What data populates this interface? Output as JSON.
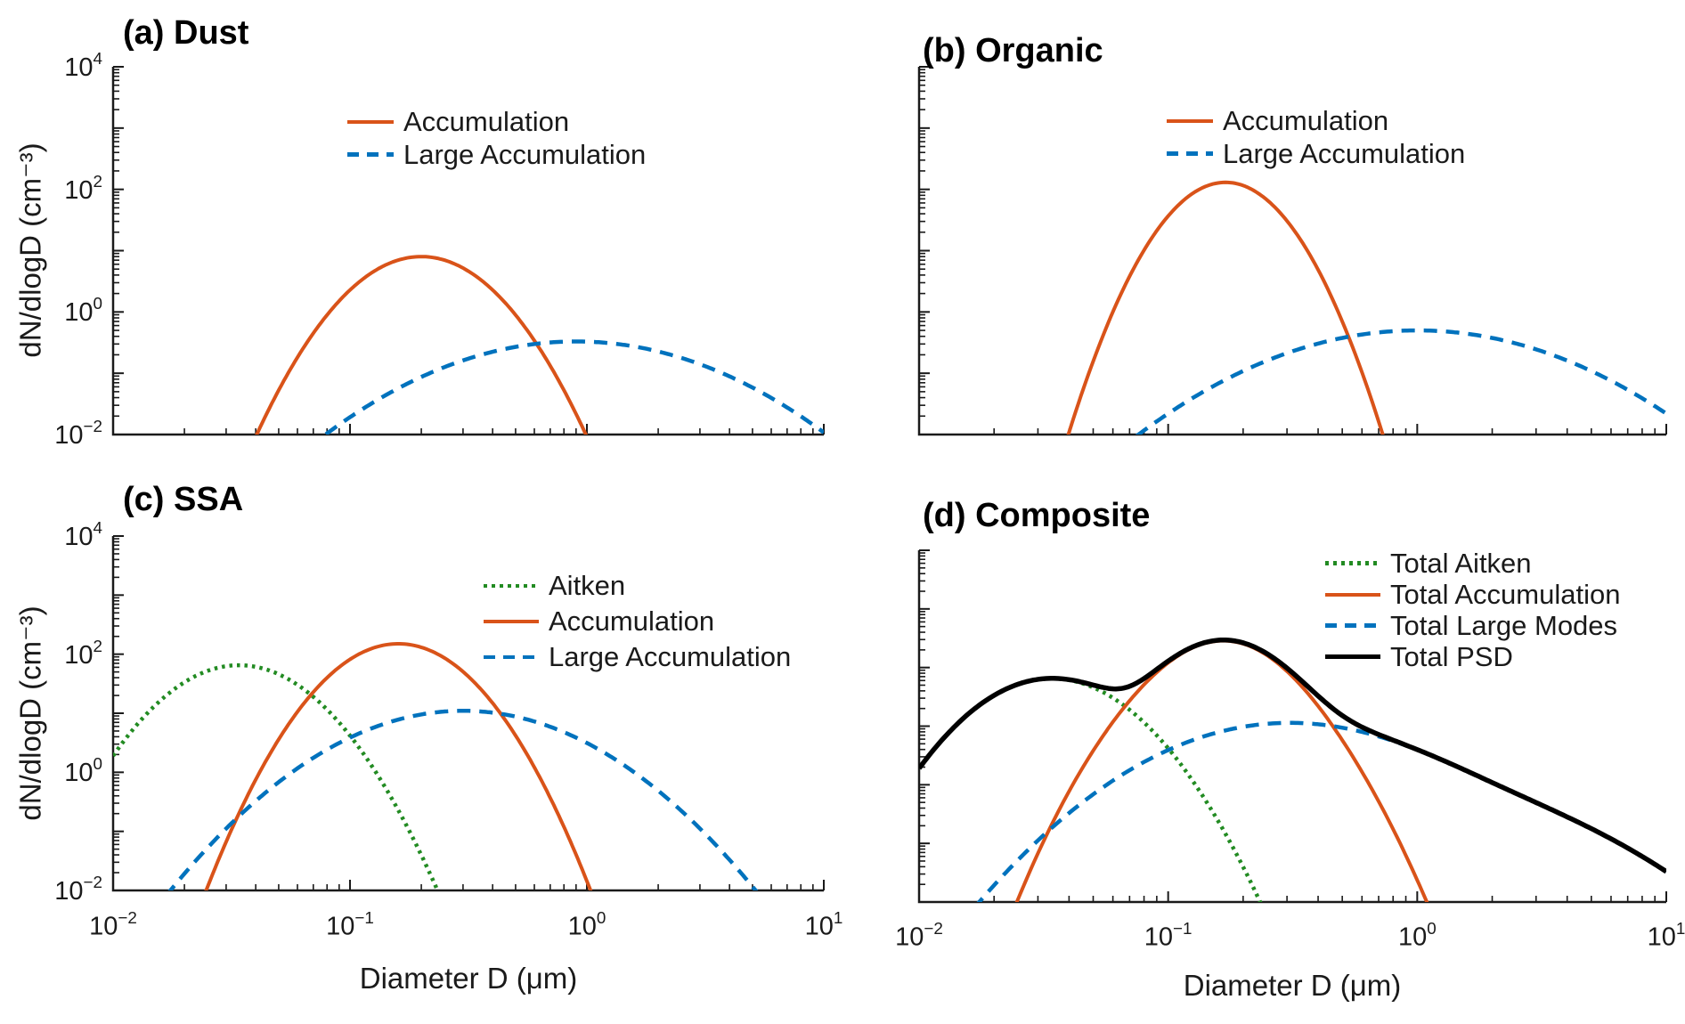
{
  "palette": {
    "orange": "#D95319",
    "blue": "#0072BD",
    "green": "#228B22",
    "black": "#000000",
    "axis": "#1a1a1a"
  },
  "chart_data": {
    "type": "line",
    "description": "Aerosol particle size distributions, four panels, lognormal modes on log-log axes",
    "x_axis": {
      "label": "Diameter D (μm)",
      "scale": "log",
      "min": 0.01,
      "max": 10,
      "tick_exponents": [
        -2,
        -1,
        0,
        1
      ]
    },
    "y_axis": {
      "label": "dN/dlogD (cm⁻³)",
      "scale": "log",
      "min": 0.01,
      "max": 10000,
      "tick_exponents": [
        4,
        2,
        0,
        -2
      ]
    },
    "grid": false,
    "legend_position": "inside-top-right",
    "panels": [
      {
        "id": "a",
        "title": "(a) Dust",
        "series": [
          {
            "name": "Accumulation",
            "style": "solid",
            "color": "orange",
            "line_width": 4,
            "modes": [
              {
                "peak_dNdlogD": 8,
                "median_diameter_um": 0.2,
                "sigma_log10": 0.19
              }
            ]
          },
          {
            "name": "Large Accumulation",
            "style": "dashed",
            "color": "blue",
            "line_width": 4.5,
            "modes": [
              {
                "peak_dNdlogD": 0.33,
                "median_diameter_um": 0.9,
                "sigma_log10": 0.4
              }
            ]
          }
        ]
      },
      {
        "id": "b",
        "title": "(b) Organic",
        "series": [
          {
            "name": "Accumulation",
            "style": "solid",
            "color": "orange",
            "line_width": 4,
            "modes": [
              {
                "peak_dNdlogD": 130,
                "median_diameter_um": 0.17,
                "sigma_log10": 0.145
              }
            ]
          },
          {
            "name": "Large Accumulation",
            "style": "dashed",
            "color": "blue",
            "line_width": 4.5,
            "modes": [
              {
                "peak_dNdlogD": 0.5,
                "median_diameter_um": 1.0,
                "sigma_log10": 0.4
              }
            ]
          }
        ]
      },
      {
        "id": "c",
        "title": "(c) SSA",
        "series": [
          {
            "name": "Aitken",
            "style": "dotted",
            "color": "green",
            "line_width": 4.5,
            "modes": [
              {
                "peak_dNdlogD": 65,
                "median_diameter_um": 0.034,
                "sigma_log10": 0.2
              }
            ]
          },
          {
            "name": "Accumulation",
            "style": "solid",
            "color": "orange",
            "line_width": 4,
            "modes": [
              {
                "peak_dNdlogD": 150,
                "median_diameter_um": 0.16,
                "sigma_log10": 0.185
              }
            ]
          },
          {
            "name": "Large Accumulation",
            "style": "dashed",
            "color": "blue",
            "line_width": 4.5,
            "modes": [
              {
                "peak_dNdlogD": 11,
                "median_diameter_um": 0.3,
                "sigma_log10": 0.33
              }
            ]
          }
        ]
      },
      {
        "id": "d",
        "title": "(d) Composite",
        "series": [
          {
            "name": "Total Aitken",
            "style": "dotted",
            "color": "green",
            "line_width": 4.5,
            "modes": [
              {
                "peak_dNdlogD": 65,
                "median_diameter_um": 0.034,
                "sigma_log10": 0.2
              }
            ]
          },
          {
            "name": "Total Accumulation",
            "style": "solid",
            "color": "orange",
            "line_width": 4,
            "modes": [
              {
                "peak_dNdlogD": 8,
                "median_diameter_um": 0.2,
                "sigma_log10": 0.19
              },
              {
                "peak_dNdlogD": 130,
                "median_diameter_um": 0.17,
                "sigma_log10": 0.145
              },
              {
                "peak_dNdlogD": 150,
                "median_diameter_um": 0.16,
                "sigma_log10": 0.185
              }
            ]
          },
          {
            "name": "Total Large Modes",
            "style": "dashed",
            "color": "blue",
            "line_width": 4.5,
            "modes": [
              {
                "peak_dNdlogD": 0.33,
                "median_diameter_um": 0.9,
                "sigma_log10": 0.4
              },
              {
                "peak_dNdlogD": 0.5,
                "median_diameter_um": 1.0,
                "sigma_log10": 0.4
              },
              {
                "peak_dNdlogD": 11,
                "median_diameter_um": 0.3,
                "sigma_log10": 0.33
              }
            ]
          },
          {
            "name": "Total PSD",
            "style": "solid",
            "color": "black",
            "line_width": 5.5,
            "modes": [
              {
                "peak_dNdlogD": 65,
                "median_diameter_um": 0.034,
                "sigma_log10": 0.2
              },
              {
                "peak_dNdlogD": 8,
                "median_diameter_um": 0.2,
                "sigma_log10": 0.19
              },
              {
                "peak_dNdlogD": 130,
                "median_diameter_um": 0.17,
                "sigma_log10": 0.145
              },
              {
                "peak_dNdlogD": 150,
                "median_diameter_um": 0.16,
                "sigma_log10": 0.185
              },
              {
                "peak_dNdlogD": 0.33,
                "median_diameter_um": 0.9,
                "sigma_log10": 0.4
              },
              {
                "peak_dNdlogD": 0.5,
                "median_diameter_um": 1.0,
                "sigma_log10": 0.4
              },
              {
                "peak_dNdlogD": 11,
                "median_diameter_um": 0.3,
                "sigma_log10": 0.33
              }
            ]
          }
        ]
      }
    ]
  }
}
